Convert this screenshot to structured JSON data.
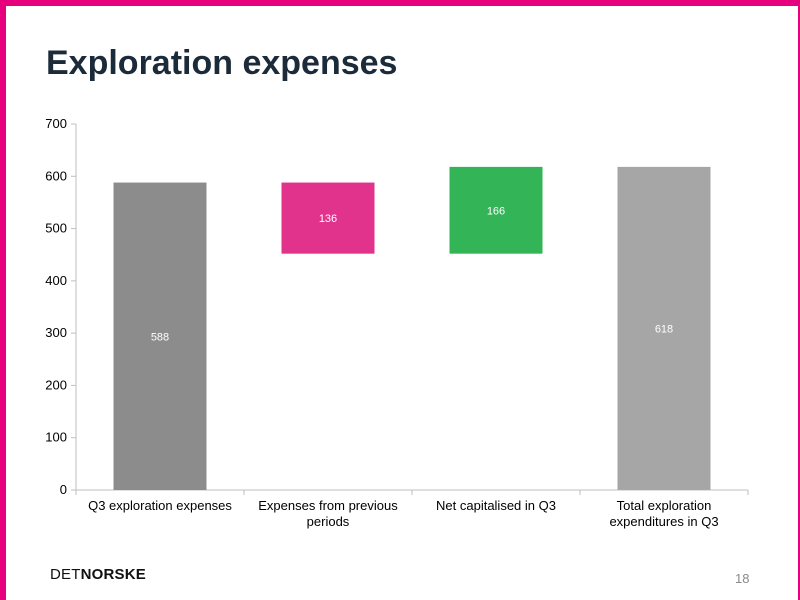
{
  "slide": {
    "title": "Exploration expenses",
    "page_number": "18",
    "logo": {
      "light": "DET",
      "bold": "NORSKE"
    },
    "colors": {
      "frame": "#e6007e",
      "title": "#1c2b3a"
    }
  },
  "chart_data": {
    "type": "bar",
    "subtype": "waterfall",
    "title": "",
    "xlabel": "",
    "ylabel": "",
    "ylim": [
      0,
      700
    ],
    "yticks": [
      0,
      100,
      200,
      300,
      400,
      500,
      600,
      700
    ],
    "grid": false,
    "legend": "none",
    "categories": [
      "Q3 exploration expenses",
      "Expenses from previous periods",
      "Net capitalised in Q3",
      "Total exploration expenditures in Q3"
    ],
    "category_lines": [
      [
        "Q3 exploration expenses"
      ],
      [
        "Expenses from previous",
        "periods"
      ],
      [
        "Net capitalised in Q3"
      ],
      [
        "Total exploration",
        "expenditures in Q3"
      ]
    ],
    "bars": [
      {
        "label": "588",
        "value": 588,
        "start": 0,
        "end": 588,
        "color": "#8c8c8c"
      },
      {
        "label": "136",
        "value": 136,
        "start": 588,
        "end": 452,
        "color": "#e2338c"
      },
      {
        "label": "166",
        "value": 166,
        "start": 452,
        "end": 618,
        "color": "#33b457"
      },
      {
        "label": "618",
        "value": 618,
        "start": 0,
        "end": 618,
        "color": "#a6a6a6"
      }
    ]
  }
}
